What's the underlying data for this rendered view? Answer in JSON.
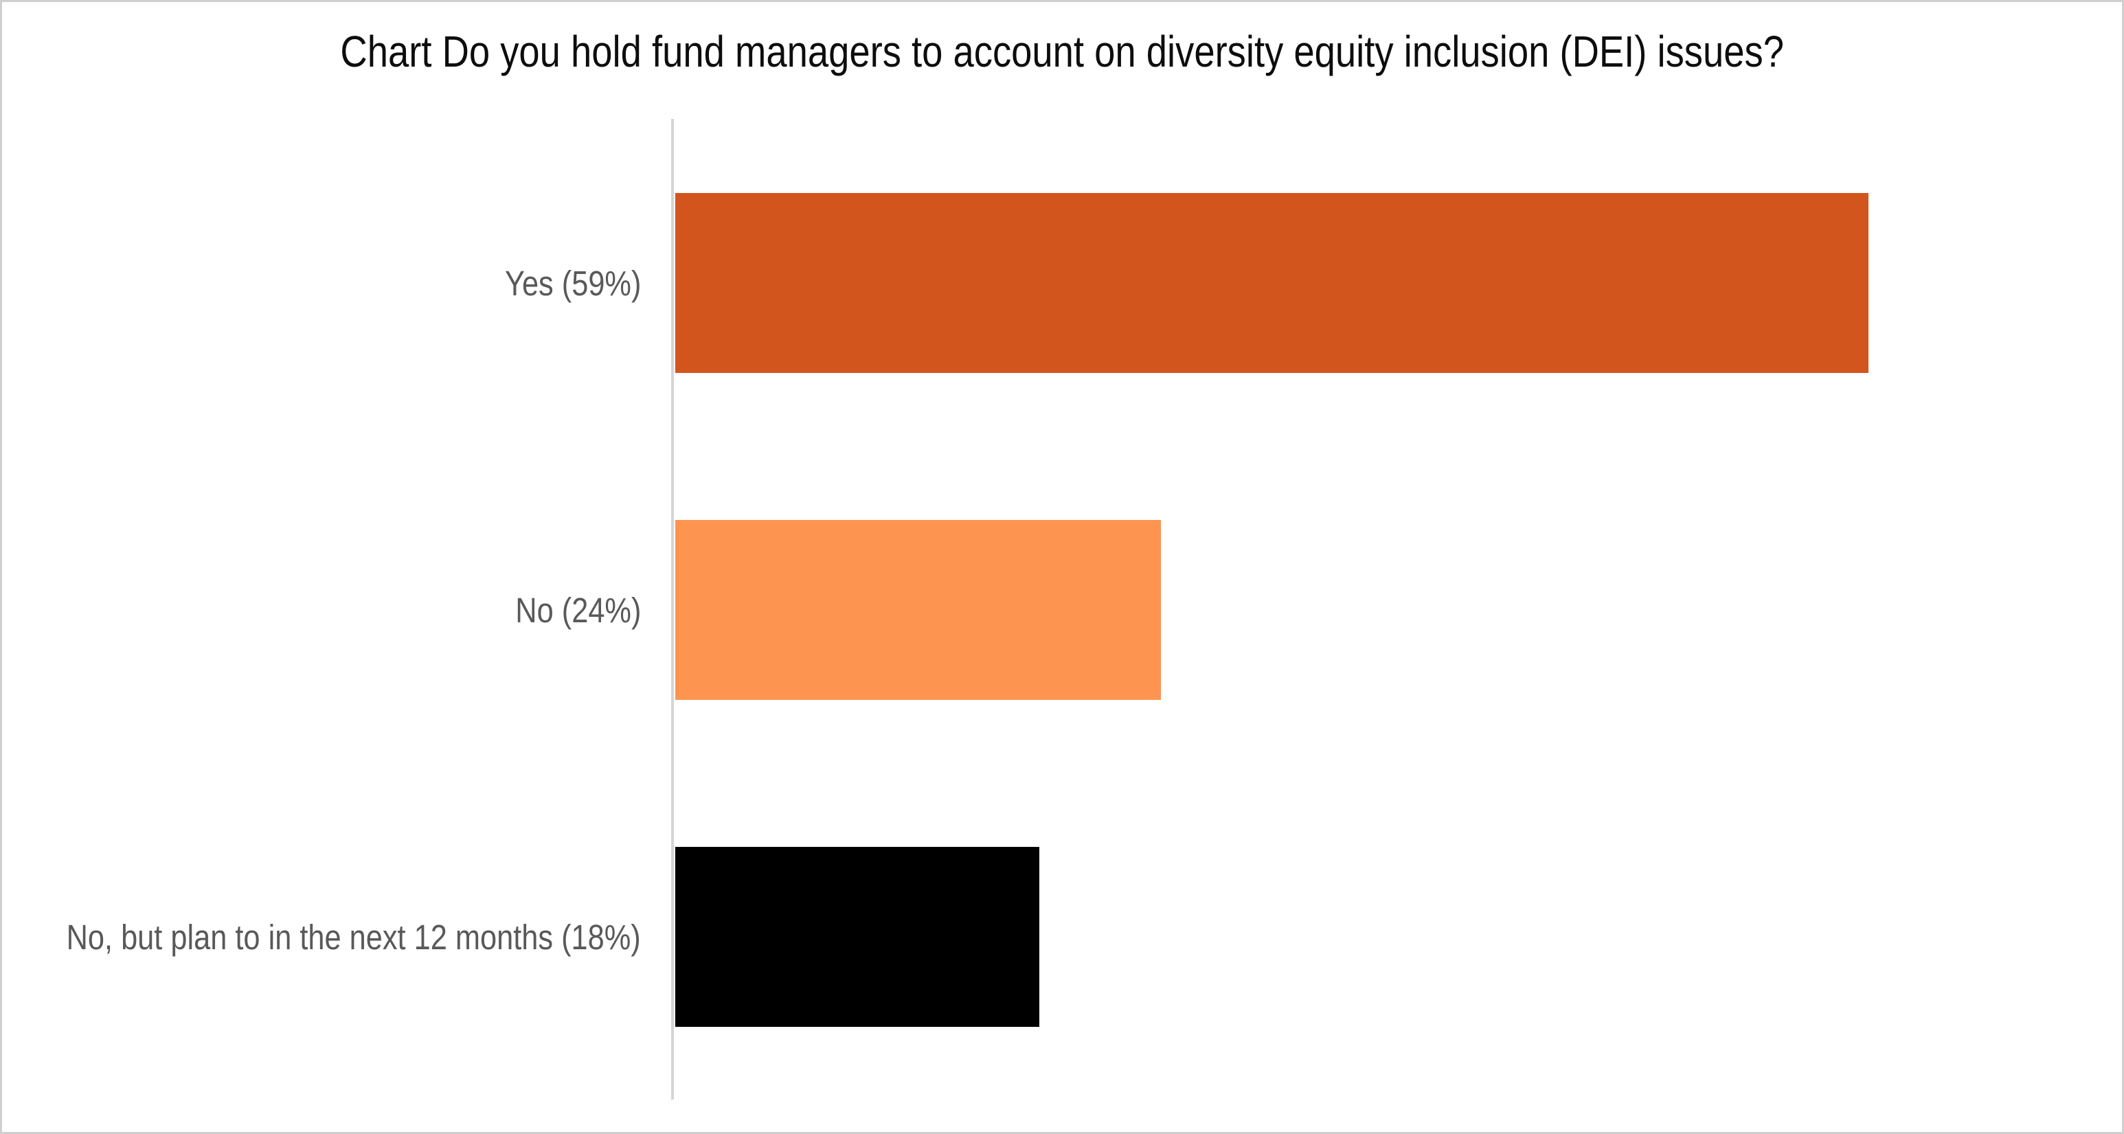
{
  "title": "Chart Do you hold fund managers to account on diversity equity inclusion (DEI) issues?",
  "colors": {
    "background": "#ffffff",
    "canvas_border": "#cfcfcf",
    "title_text": "#0d0d0d",
    "label_text": "#595959",
    "axis_line": "#d5d5d5",
    "bar_yes": "#d2551d",
    "bar_no": "#fd9551",
    "bar_plan": "#000000"
  },
  "chart_data": {
    "type": "bar",
    "orientation": "horizontal",
    "title": "Chart Do you hold fund managers to account on diversity equity inclusion (DEI) issues?",
    "categories": [
      "Yes (59%)",
      "No (24%)",
      "No, but plan to in the next 12 months (18%)"
    ],
    "values": [
      59,
      24,
      18
    ],
    "unit": "%",
    "bar_colors": [
      "#d2551d",
      "#fd9551",
      "#000000"
    ],
    "xlabel": "",
    "ylabel": "",
    "xlim": [
      0,
      59
    ],
    "grid": false,
    "legend": false,
    "value_labels_position": "inside-category-label"
  }
}
